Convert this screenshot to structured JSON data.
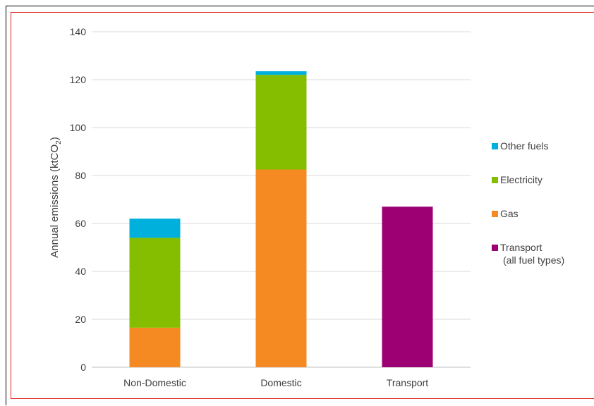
{
  "chart_data": {
    "type": "bar",
    "stacked": true,
    "categories": [
      "Non-Domestic",
      "Domestic",
      "Transport"
    ],
    "series": [
      {
        "name": "Gas",
        "values": [
          16.5,
          82.5,
          0
        ],
        "color": "#f58a23"
      },
      {
        "name": "Electricity",
        "values": [
          37.5,
          39.5,
          0
        ],
        "color": "#85bd00"
      },
      {
        "name": "Other fuels",
        "values": [
          8,
          1.5,
          0
        ],
        "color": "#00b0dc"
      },
      {
        "name": "Transport",
        "legend_label": [
          "Transport",
          "(all fuel types)"
        ],
        "values": [
          0,
          0,
          67
        ],
        "color": "#9c0072"
      }
    ],
    "ylabel": "Annual emissions (ktCO",
    "ylabel_subscript": "2",
    "ylabel_suffix": ")",
    "ylim": [
      0,
      140
    ],
    "yticks": [
      "0",
      "20",
      "40",
      "60",
      "80",
      "100",
      "120",
      "140"
    ],
    "legend_order": [
      "Other fuels",
      "Electricity",
      "Gas",
      "Transport"
    ],
    "legend_position": "right",
    "grid": true
  }
}
